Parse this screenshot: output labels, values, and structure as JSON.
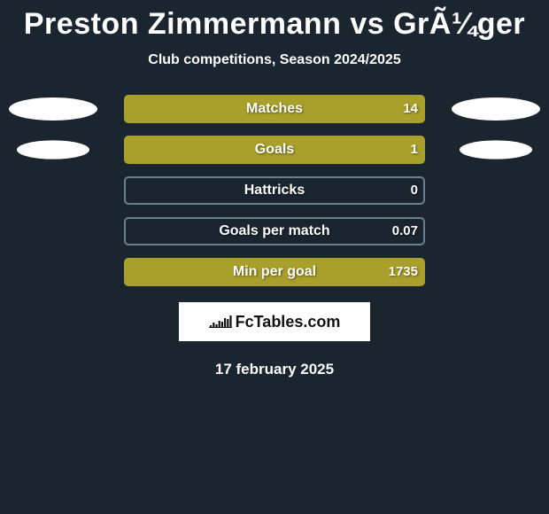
{
  "title": "Preston Zimmermann vs GrÃ¼ger",
  "subtitle": "Club competitions, Season 2024/2025",
  "date": "17 february 2025",
  "brand": "FcTables.com",
  "colors": {
    "background": "#1a2530",
    "bar_fill": "#a8a02a",
    "bar_border_active": "#a8a02a",
    "bar_border_empty": "#6a8090",
    "text": "#ffffff",
    "pill": "#ffffff"
  },
  "stats": [
    {
      "label": "Matches",
      "value": "14",
      "fill_pct": 100,
      "show_pills": true,
      "border": "#a8a02a",
      "pill_scale": 1.0
    },
    {
      "label": "Goals",
      "value": "1",
      "fill_pct": 100,
      "show_pills": true,
      "border": "#a8a02a",
      "pill_scale": 0.82
    },
    {
      "label": "Hattricks",
      "value": "0",
      "fill_pct": 0,
      "show_pills": false,
      "border": "#6a8090",
      "pill_scale": 0
    },
    {
      "label": "Goals per match",
      "value": "0.07",
      "fill_pct": 0,
      "show_pills": false,
      "border": "#6a8090",
      "pill_scale": 0
    },
    {
      "label": "Min per goal",
      "value": "1735",
      "fill_pct": 100,
      "show_pills": false,
      "border": "#a8a02a",
      "pill_scale": 0
    }
  ],
  "brand_icon_svg": {
    "bars": [
      2,
      5,
      3,
      7,
      6,
      10,
      9,
      13
    ],
    "color": "#111111"
  }
}
